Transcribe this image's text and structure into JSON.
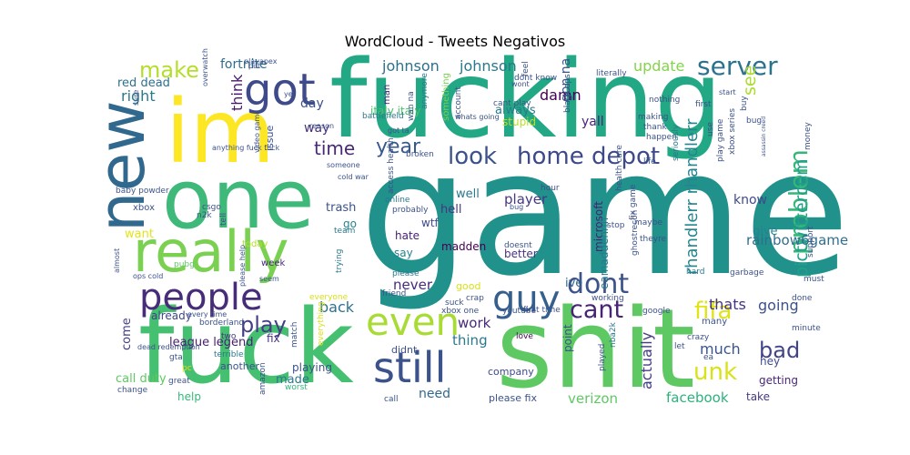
{
  "title": "WordCloud - Tweets Negativos",
  "chart_data": {
    "type": "wordcloud",
    "title": "WordCloud - Tweets Negativos",
    "palette": [
      "#440154",
      "#46327e",
      "#365c8d",
      "#277f8e",
      "#1fa187",
      "#4ac16d",
      "#a0da39",
      "#fde725"
    ],
    "words": [
      {
        "text": "game",
        "weight": 1.0,
        "color": "#21918c"
      },
      {
        "text": "fucking",
        "weight": 0.76,
        "color": "#22a884"
      },
      {
        "text": "shit",
        "weight": 0.72,
        "color": "#5ec962"
      },
      {
        "text": "fuck",
        "weight": 0.68,
        "color": "#45bf70"
      },
      {
        "text": "one",
        "weight": 0.55,
        "color": "#3eb979"
      },
      {
        "text": "im",
        "weight": 0.5,
        "color": "#fde725"
      },
      {
        "text": "new",
        "weight": 0.42,
        "color": "#31688e"
      },
      {
        "text": "really",
        "weight": 0.37,
        "color": "#7ad151"
      },
      {
        "text": "got",
        "weight": 0.26,
        "color": "#3e4a89"
      },
      {
        "text": "still",
        "weight": 0.27,
        "color": "#3b528b"
      },
      {
        "text": "even",
        "weight": 0.23,
        "color": "#a8db34"
      },
      {
        "text": "people",
        "weight": 0.23,
        "color": "#472c7a"
      },
      {
        "text": "guy",
        "weight": 0.23,
        "color": "#355f8d"
      },
      {
        "text": "home depot",
        "weight": 0.17,
        "color": "#3e4989"
      },
      {
        "text": "look",
        "weight": 0.17,
        "color": "#3b528b"
      },
      {
        "text": "dont",
        "weight": 0.16,
        "color": "#3b528b"
      },
      {
        "text": "cant",
        "weight": 0.16,
        "color": "#482475"
      },
      {
        "text": "problem",
        "weight": 0.16,
        "color": "#35b779"
      },
      {
        "text": "server",
        "weight": 0.15,
        "color": "#2c728e"
      },
      {
        "text": "make",
        "weight": 0.14,
        "color": "#b5de2b"
      },
      {
        "text": "fifa",
        "weight": 0.14,
        "color": "#dfe318"
      },
      {
        "text": "play",
        "weight": 0.15,
        "color": "#433e85"
      },
      {
        "text": "bad",
        "weight": 0.14,
        "color": "#414487"
      },
      {
        "text": "unk",
        "weight": 0.14,
        "color": "#d8e219"
      },
      {
        "text": "year",
        "weight": 0.13,
        "color": "#38598c"
      },
      {
        "text": "time",
        "weight": 0.12,
        "color": "#482878"
      },
      {
        "text": "pictwittercom",
        "weight": 0.12,
        "color": "#1fa088"
      },
      {
        "text": "see",
        "weight": 0.12,
        "color": "#addc30"
      },
      {
        "text": "rhandlerr rhandlerr",
        "weight": 0.1,
        "color": "#25858e"
      },
      {
        "text": "johnson",
        "weight": 0.1,
        "color": "#2d708e"
      },
      {
        "text": "johnson",
        "weight": 0.1,
        "color": "#2a788e"
      },
      {
        "text": "update",
        "weight": 0.09,
        "color": "#84d44b"
      },
      {
        "text": "right",
        "weight": 0.09,
        "color": "#2a788e"
      },
      {
        "text": "think",
        "weight": 0.09,
        "color": "#481668"
      },
      {
        "text": "damn",
        "weight": 0.09,
        "color": "#440154"
      },
      {
        "text": "going",
        "weight": 0.09,
        "color": "#3b528b"
      },
      {
        "text": "thats",
        "weight": 0.09,
        "color": "#46327e"
      },
      {
        "text": "much",
        "weight": 0.09,
        "color": "#39568c"
      },
      {
        "text": "actually",
        "weight": 0.08,
        "color": "#433e85"
      },
      {
        "text": "facebook",
        "weight": 0.09,
        "color": "#2db27d"
      },
      {
        "text": "verizon",
        "weight": 0.08,
        "color": "#5ec962"
      },
      {
        "text": "back",
        "weight": 0.09,
        "color": "#2c728e"
      },
      {
        "text": "work",
        "weight": 0.08,
        "color": "#482878"
      },
      {
        "text": "thing",
        "weight": 0.08,
        "color": "#2a788e"
      },
      {
        "text": "never",
        "weight": 0.08,
        "color": "#472a7a"
      },
      {
        "text": "player",
        "weight": 0.08,
        "color": "#453781"
      },
      {
        "text": "day",
        "weight": 0.08,
        "color": "#3b528b"
      },
      {
        "text": "way",
        "weight": 0.08,
        "color": "#46307e"
      },
      {
        "text": "fortnite",
        "weight": 0.07,
        "color": "#2e6e8e"
      },
      {
        "text": "red dead",
        "weight": 0.06,
        "color": "#2d708e"
      },
      {
        "text": "yall",
        "weight": 0.08,
        "color": "#482475"
      },
      {
        "text": "gon na",
        "weight": 0.07,
        "color": "#3b528b"
      },
      {
        "text": "always",
        "weight": 0.06,
        "color": "#297b8e"
      },
      {
        "text": "stupid",
        "weight": 0.07,
        "color": "#b8de29"
      },
      {
        "text": "want",
        "weight": 0.07,
        "color": "#e2e418"
      },
      {
        "text": "league legend",
        "weight": 0.07,
        "color": "#482173"
      },
      {
        "text": "microsoft",
        "weight": 0.07,
        "color": "#481f70"
      },
      {
        "text": "eamaddennfl",
        "weight": 0.07,
        "color": "#2a778e"
      },
      {
        "text": "rainbow6game",
        "weight": 0.06,
        "color": "#2e6f8e"
      },
      {
        "text": "know",
        "weight": 0.08,
        "color": "#3e4a89"
      },
      {
        "text": "give",
        "weight": 0.07,
        "color": "#26828e"
      },
      {
        "text": "need",
        "weight": 0.07,
        "color": "#31688e"
      },
      {
        "text": "call duty",
        "weight": 0.07,
        "color": "#5ec962"
      },
      {
        "text": "help",
        "weight": 0.07,
        "color": "#35b779"
      },
      {
        "text": "hey",
        "weight": 0.06,
        "color": "#3e4a89"
      },
      {
        "text": "getting",
        "weight": 0.06,
        "color": "#482878"
      },
      {
        "text": "take",
        "weight": 0.06,
        "color": "#443983"
      },
      {
        "text": "please fix",
        "weight": 0.06,
        "color": "#3b528b"
      },
      {
        "text": "company",
        "weight": 0.05,
        "color": "#3e4989"
      },
      {
        "text": "didnt",
        "weight": 0.05,
        "color": "#3b528b"
      },
      {
        "text": "made",
        "weight": 0.05,
        "color": "#2a788e"
      },
      {
        "text": "playing",
        "weight": 0.06,
        "color": "#3b528b"
      },
      {
        "text": "fix",
        "weight": 0.06,
        "color": "#46307e"
      },
      {
        "text": "come",
        "weight": 0.06,
        "color": "#433e85"
      },
      {
        "text": "already",
        "weight": 0.06,
        "color": "#414487"
      },
      {
        "text": "hell",
        "weight": 0.06,
        "color": "#453781"
      },
      {
        "text": "wtf",
        "weight": 0.06,
        "color": "#3e4a89"
      },
      {
        "text": "hate",
        "weight": 0.06,
        "color": "#482173"
      },
      {
        "text": "madden",
        "weight": 0.06,
        "color": "#440154"
      },
      {
        "text": "say",
        "weight": 0.06,
        "color": "#26828e"
      },
      {
        "text": "better",
        "weight": 0.05,
        "color": "#46327e"
      },
      {
        "text": "trash",
        "weight": 0.05,
        "color": "#3b528b"
      },
      {
        "text": "well",
        "weight": 0.06,
        "color": "#2a788e"
      },
      {
        "text": "go",
        "weight": 0.06,
        "color": "#26828e"
      },
      {
        "text": "ive",
        "weight": 0.05,
        "color": "#31688e"
      },
      {
        "text": "good",
        "weight": 0.06,
        "color": "#d8e219"
      },
      {
        "text": "point",
        "weight": 0.05,
        "color": "#3b528b"
      },
      {
        "text": "italy italy",
        "weight": 0.06,
        "color": "#4ac16d"
      },
      {
        "text": "man",
        "weight": 0.05,
        "color": "#472a7a"
      },
      {
        "text": "issue",
        "weight": 0.04,
        "color": "#3b528b"
      },
      {
        "text": "something",
        "weight": 0.04,
        "color": "#7ad151"
      },
      {
        "text": "today",
        "weight": 0.04,
        "color": "#b5de2b"
      },
      {
        "text": "week",
        "weight": 0.04,
        "color": "#482878"
      },
      {
        "text": "pubg",
        "weight": 0.03,
        "color": "#5ec962"
      },
      {
        "text": "love",
        "weight": 0.03,
        "color": "#440154"
      },
      {
        "text": "fix game",
        "weight": 0.03,
        "color": "#3b528b"
      },
      {
        "text": "seriously",
        "weight": 0.03,
        "color": "#2a788e"
      },
      {
        "text": "play game",
        "weight": 0.03,
        "color": "#3b528b"
      },
      {
        "text": "battlefield",
        "weight": 0.03,
        "color": "#2a788e"
      },
      {
        "text": "xbox",
        "weight": 0.03,
        "color": "#3b528b"
      },
      {
        "text": "csgo",
        "weight": 0.03,
        "color": "#3b528b"
      },
      {
        "text": "n2k",
        "weight": 0.03,
        "color": "#3b528b"
      },
      {
        "text": "tell",
        "weight": 0.03,
        "color": "#3b528b"
      },
      {
        "text": "baby powder",
        "weight": 0.03,
        "color": "#3b528b"
      },
      {
        "text": "another",
        "weight": 0.03,
        "color": "#3b528b"
      },
      {
        "text": "pc",
        "weight": 0.03,
        "color": "#dfe318"
      },
      {
        "text": "two",
        "weight": 0.03,
        "color": "#46327e"
      },
      {
        "text": "gta",
        "weight": 0.03,
        "color": "#3b528b"
      },
      {
        "text": "great",
        "weight": 0.03,
        "color": "#3b528b"
      },
      {
        "text": "change",
        "weight": 0.03,
        "color": "#3b528b"
      },
      {
        "text": "worst",
        "weight": 0.03,
        "color": "#35b779"
      },
      {
        "text": "match",
        "weight": 0.03,
        "color": "#3b528b"
      },
      {
        "text": "amazon",
        "weight": 0.03,
        "color": "#3b528b"
      },
      {
        "text": "everyone",
        "weight": 0.03,
        "color": "#d8e219"
      },
      {
        "text": "everything",
        "weight": 0.03,
        "color": "#d8e219"
      },
      {
        "text": "terrible",
        "weight": 0.03,
        "color": "#2a788e"
      },
      {
        "text": "borderland",
        "weight": 0.03,
        "color": "#3b528b"
      },
      {
        "text": "team",
        "weight": 0.03,
        "color": "#2a788e"
      },
      {
        "text": "trying",
        "weight": 0.03,
        "color": "#2a788e"
      },
      {
        "text": "crazy",
        "weight": 0.03,
        "color": "#3b528b"
      },
      {
        "text": "many",
        "weight": 0.03,
        "color": "#3b528b"
      },
      {
        "text": "minute",
        "weight": 0.03,
        "color": "#3b528b"
      },
      {
        "text": "done",
        "weight": 0.04,
        "color": "#3b528b"
      },
      {
        "text": "must",
        "weight": 0.03,
        "color": "#3b528b"
      },
      {
        "text": "hard",
        "weight": 0.03,
        "color": "#2a788e"
      },
      {
        "text": "garbage",
        "weight": 0.03,
        "color": "#3b528b"
      },
      {
        "text": "ea",
        "weight": 0.03,
        "color": "#3b528b"
      },
      {
        "text": "let",
        "weight": 0.03,
        "color": "#3b528b"
      },
      {
        "text": "nba2k",
        "weight": 0.03,
        "color": "#2a788e"
      },
      {
        "text": "played",
        "weight": 0.03,
        "color": "#3b528b"
      },
      {
        "text": "working",
        "weight": 0.03,
        "color": "#3b528b"
      },
      {
        "text": "google",
        "weight": 0.03,
        "color": "#3b528b"
      },
      {
        "text": "youtube",
        "weight": 0.03,
        "color": "#3b528b"
      },
      {
        "text": "first time",
        "weight": 0.03,
        "color": "#3b528b"
      },
      {
        "text": "xbox one",
        "weight": 0.03,
        "color": "#3b528b"
      },
      {
        "text": "suck",
        "weight": 0.03,
        "color": "#3b528b"
      },
      {
        "text": "crap",
        "weight": 0.03,
        "color": "#3b528b"
      },
      {
        "text": "please",
        "weight": 0.03,
        "color": "#2a788e"
      },
      {
        "text": "friend",
        "weight": 0.03,
        "color": "#3b528b"
      },
      {
        "text": "call",
        "weight": 0.03,
        "color": "#3b528b"
      },
      {
        "text": "online",
        "weight": 0.03,
        "color": "#2a788e"
      },
      {
        "text": "probably",
        "weight": 0.03,
        "color": "#3b528b"
      },
      {
        "text": "access health",
        "weight": 0.03,
        "color": "#3b528b"
      },
      {
        "text": "doesnt",
        "weight": 0.03,
        "color": "#3b528b"
      },
      {
        "text": "maybe",
        "weight": 0.03,
        "color": "#3b528b"
      },
      {
        "text": "ghostrecon",
        "weight": 0.03,
        "color": "#3b528b"
      },
      {
        "text": "theyre",
        "weight": 0.03,
        "color": "#3b528b"
      },
      {
        "text": "stop",
        "weight": 0.03,
        "color": "#3b528b"
      },
      {
        "text": "life",
        "weight": 0.03,
        "color": "#3b528b"
      },
      {
        "text": "health care",
        "weight": 0.03,
        "color": "#3b528b"
      },
      {
        "text": "hour",
        "weight": 0.03,
        "color": "#3b528b"
      },
      {
        "text": "broken",
        "weight": 0.03,
        "color": "#3b528b"
      },
      {
        "text": "wan na",
        "weight": 0.03,
        "color": "#3b528b"
      },
      {
        "text": "anymore",
        "weight": 0.03,
        "color": "#2a788e"
      },
      {
        "text": "account",
        "weight": 0.03,
        "color": "#3b528b"
      },
      {
        "text": "dont know",
        "weight": 0.03,
        "color": "#3b528b"
      },
      {
        "text": "feel",
        "weight": 0.03,
        "color": "#3b528b"
      },
      {
        "text": "cant play",
        "weight": 0.03,
        "color": "#3b528b"
      },
      {
        "text": "black ops",
        "weight": 0.03,
        "color": "#3b528b"
      },
      {
        "text": "literally",
        "weight": 0.03,
        "color": "#3b528b"
      },
      {
        "text": "nothing",
        "weight": 0.03,
        "color": "#3b528b"
      },
      {
        "text": "making",
        "weight": 0.03,
        "color": "#3b528b"
      },
      {
        "text": "thank",
        "weight": 0.03,
        "color": "#3b528b"
      },
      {
        "text": "happen",
        "weight": 0.03,
        "color": "#3b528b"
      },
      {
        "text": "use",
        "weight": 0.03,
        "color": "#3b528b"
      },
      {
        "text": "first",
        "weight": 0.03,
        "color": "#3b528b"
      },
      {
        "text": "buy",
        "weight": 0.03,
        "color": "#3b528b"
      },
      {
        "text": "bug",
        "weight": 0.03,
        "color": "#3b528b"
      },
      {
        "text": "money",
        "weight": 0.03,
        "color": "#3b528b"
      },
      {
        "text": "xbox series",
        "weight": 0.03,
        "color": "#3b528b"
      },
      {
        "text": "support",
        "weight": 0.02,
        "color": "#3b528b"
      },
      {
        "text": "assassin creed",
        "weight": 0.03,
        "color": "#3b528b"
      },
      {
        "text": "whats going",
        "weight": 0.02,
        "color": "#3b528b"
      },
      {
        "text": "got ta",
        "weight": 0.03,
        "color": "#3b528b"
      },
      {
        "text": "reason",
        "weight": 0.03,
        "color": "#3b528b"
      },
      {
        "text": "someone",
        "weight": 0.03,
        "color": "#3b528b"
      },
      {
        "text": "cold war",
        "weight": 0.03,
        "color": "#3b528b"
      },
      {
        "text": "yet",
        "weight": 0.03,
        "color": "#3b528b"
      },
      {
        "text": "put",
        "weight": 0.03,
        "color": "#3b528b"
      },
      {
        "text": "playapex",
        "weight": 0.03,
        "color": "#3b528b"
      },
      {
        "text": "overwatch",
        "weight": 0.03,
        "color": "#3b528b"
      },
      {
        "text": "sure",
        "weight": 0.03,
        "color": "#3b528b"
      },
      {
        "text": "anything fuck fuck",
        "weight": 0.03,
        "color": "#3b528b"
      },
      {
        "text": "video game",
        "weight": 0.03,
        "color": "#3b528b"
      },
      {
        "text": "seem",
        "weight": 0.03,
        "color": "#3b528b"
      },
      {
        "text": "please help",
        "weight": 0.03,
        "color": "#3b528b"
      },
      {
        "text": "ops cold",
        "weight": 0.03,
        "color": "#3b528b"
      },
      {
        "text": "every time",
        "weight": 0.03,
        "color": "#3b528b"
      },
      {
        "text": "dead redemption",
        "weight": 0.03,
        "color": "#3b528b"
      },
      {
        "text": "almost",
        "weight": 0.03,
        "color": "#3b528b"
      },
      {
        "text": "start",
        "weight": 0.03,
        "color": "#3b528b"
      },
      {
        "text": "wont",
        "weight": 0.03,
        "color": "#3b528b"
      },
      {
        "text": "bug",
        "weight": 0.02,
        "color": "#3b528b"
      },
      {
        "text": "brain",
        "weight": 0.02,
        "color": "#3b528b"
      },
      {
        "text": "good",
        "weight": 0.02,
        "color": "#3b528b"
      }
    ]
  }
}
